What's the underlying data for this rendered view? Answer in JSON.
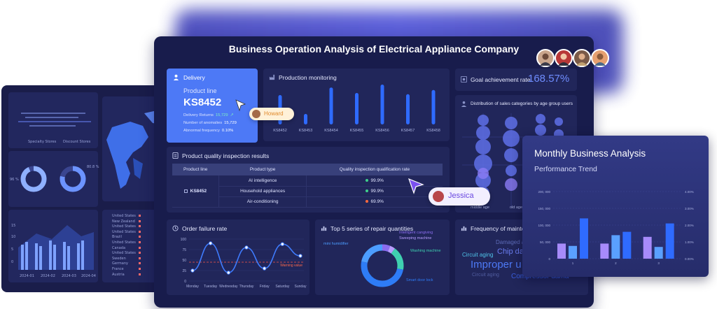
{
  "main": {
    "title": "Business Operation Analysis of Electrical Appliance Company"
  },
  "delivery": {
    "heading": "Delivery",
    "product_line_label": "Product line",
    "product_code": "KS8452",
    "delivery_returns_label": "Delivery Returns",
    "delivery_returns_value": "15,729",
    "anomalies_label": "Number of anomalies",
    "anomalies_value": "15,729",
    "abnormal_label": "Abnormal frequency",
    "abnormal_value": "0.10%"
  },
  "production": {
    "title": "Production monitoring",
    "chart_data": {
      "type": "bar",
      "categories": [
        "KS8452",
        "KS8453",
        "KS8454",
        "KS8455",
        "KS8456",
        "KS8457",
        "KS8458"
      ],
      "values": [
        70,
        25,
        88,
        75,
        95,
        72,
        82
      ]
    }
  },
  "goal": {
    "label": "Goal achievement rate",
    "value": "168.57%"
  },
  "distribution": {
    "title": "Distribution of sales categories by age group users",
    "x_labels": [
      "middle age",
      "old age"
    ]
  },
  "quality": {
    "title": "Product quality inspection results",
    "headers": [
      "Product line",
      "Product type",
      "Quality inspection qualification rate"
    ],
    "product_line": "KS8452",
    "rows": [
      {
        "type": "AI intelligence",
        "rate": "99.9%",
        "color": "#3fd08c"
      },
      {
        "type": "Household appliances",
        "rate": "99.9%",
        "color": "#3fd08c"
      },
      {
        "type": "Air-conditioning",
        "rate": "69.9%",
        "color": "#ff6a3d"
      }
    ]
  },
  "order_failure": {
    "title": "Order failure rate",
    "warning_label": "Warning value",
    "chart_data": {
      "type": "line",
      "x": [
        "Monday",
        "Tuesday",
        "Wednesday",
        "Thursday",
        "Friday",
        "Saturday",
        "Sunday"
      ],
      "y_ticks": [
        0,
        25,
        50,
        75,
        100
      ],
      "ylim": [
        0,
        100
      ],
      "warning": 45,
      "values": [
        25,
        90,
        20,
        80,
        30,
        88,
        60
      ]
    }
  },
  "repair": {
    "title": "Top 5 series of repair quantities",
    "chart_data": {
      "type": "pie",
      "labels": [
        "Intelligent cangiving",
        "Sweeping machine",
        "Washing machine",
        "Smart door lock",
        "mini humidifier"
      ],
      "values": [
        6,
        4,
        18,
        50,
        22
      ],
      "colors": [
        "#8b6cf0",
        "#b79cff",
        "#3fd0b0",
        "#2e7cf6",
        "#4c9dff"
      ]
    }
  },
  "frequency": {
    "title": "Frequency of mainte",
    "words": [
      "Damaged a",
      "Circuit aging",
      "Chip da",
      "Improper u",
      "Circuit aging",
      "Compressor dama"
    ]
  },
  "tags": {
    "howard": "Howard",
    "jessica": "Jessica"
  },
  "monthly": {
    "title": "Monthly Business Analysis",
    "subtitle": "Performance Trend",
    "chart_data": {
      "type": "bar",
      "categories": [
        "1",
        "2",
        "3"
      ],
      "y_ticks": [
        "0",
        "50, 000",
        "100, 000",
        "150, 000",
        "200, 000"
      ],
      "y2_ticks": [
        "0.00%",
        "1.00%",
        "2.00%",
        "3.00%",
        "4.00%"
      ],
      "series": [
        {
          "values": [
            45000,
            45000,
            65000
          ]
        },
        {
          "values": [
            38000,
            70000,
            35000
          ]
        },
        {
          "values": [
            120000,
            80000,
            105000
          ]
        }
      ],
      "ylim": [
        0,
        200000
      ]
    }
  },
  "back": {
    "legend": [
      "Specialty Stores",
      "Discount Stores"
    ],
    "countries": [
      "United States",
      "New Zealand",
      "United States",
      "United States",
      "Brazil",
      "United States",
      "Canada",
      "United States",
      "Sweden",
      "Germany",
      "France",
      "Austria"
    ],
    "dates": [
      "2024-01",
      "2024-02",
      "2024-03",
      "2024-04"
    ],
    "y_ticks": [
      "15",
      "10",
      "5",
      "0"
    ],
    "donut_labels": [
      "96 %",
      "80.8 %"
    ],
    "colors": {
      "accent": "#4d79f6",
      "bar": "#2f6bff",
      "bg": "#181c4c"
    }
  }
}
